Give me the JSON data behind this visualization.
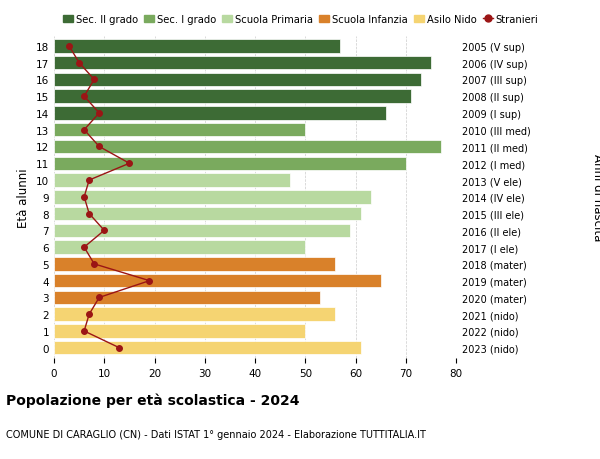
{
  "ages": [
    18,
    17,
    16,
    15,
    14,
    13,
    12,
    11,
    10,
    9,
    8,
    7,
    6,
    5,
    4,
    3,
    2,
    1,
    0
  ],
  "bar_values": [
    57,
    75,
    73,
    71,
    66,
    50,
    77,
    70,
    47,
    63,
    61,
    59,
    50,
    56,
    65,
    53,
    56,
    50,
    61
  ],
  "bar_colors": [
    "#3d6b35",
    "#3d6b35",
    "#3d6b35",
    "#3d6b35",
    "#3d6b35",
    "#7aaa5e",
    "#7aaa5e",
    "#7aaa5e",
    "#b8d9a0",
    "#b8d9a0",
    "#b8d9a0",
    "#b8d9a0",
    "#b8d9a0",
    "#d9812a",
    "#d9812a",
    "#d9812a",
    "#f5d472",
    "#f5d472",
    "#f5d472"
  ],
  "right_labels": [
    "2005 (V sup)",
    "2006 (IV sup)",
    "2007 (III sup)",
    "2008 (II sup)",
    "2009 (I sup)",
    "2010 (III med)",
    "2011 (II med)",
    "2012 (I med)",
    "2013 (V ele)",
    "2014 (IV ele)",
    "2015 (III ele)",
    "2016 (II ele)",
    "2017 (I ele)",
    "2018 (mater)",
    "2019 (mater)",
    "2020 (mater)",
    "2021 (nido)",
    "2022 (nido)",
    "2023 (nido)"
  ],
  "stranieri_values": [
    3,
    5,
    8,
    6,
    9,
    6,
    9,
    15,
    7,
    6,
    7,
    10,
    6,
    8,
    19,
    9,
    7,
    6,
    13
  ],
  "legend_labels": [
    "Sec. II grado",
    "Sec. I grado",
    "Scuola Primaria",
    "Scuola Infanzia",
    "Asilo Nido",
    "Stranieri"
  ],
  "legend_colors": [
    "#3d6b35",
    "#7aaa5e",
    "#b8d9a0",
    "#d9812a",
    "#f5d472",
    "#9b1515"
  ],
  "ylabel_left": "Età alunni",
  "ylabel_right": "Anni di nascita",
  "title": "Popolazione per età scolastica - 2024",
  "subtitle": "COMUNE DI CARAGLIO (CN) - Dati ISTAT 1° gennaio 2024 - Elaborazione TUTTITALIA.IT",
  "xlim": [
    0,
    80
  ],
  "xticks": [
    0,
    10,
    20,
    30,
    40,
    50,
    60,
    70,
    80
  ],
  "bar_height": 0.8,
  "grid_color": "#cccccc",
  "bg_color": "#ffffff",
  "stranieri_line_color": "#9b1515",
  "stranieri_marker_color": "#9b1515"
}
